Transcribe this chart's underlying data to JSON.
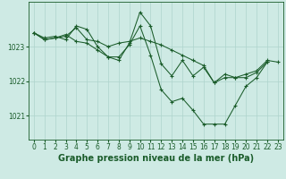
{
  "title": "Graphe pression niveau de la mer (hPa)",
  "xlabel_hours": [
    0,
    1,
    2,
    3,
    4,
    5,
    6,
    7,
    8,
    9,
    10,
    11,
    12,
    13,
    14,
    15,
    16,
    17,
    18,
    19,
    20,
    21,
    22,
    23
  ],
  "ylim": [
    1020.3,
    1024.3
  ],
  "yticks": [
    1021,
    1022,
    1023
  ],
  "background_color": "#ceeae4",
  "grid_color": "#aed4cc",
  "line_color": "#1a5c2a",
  "series1_x": [
    0,
    1,
    2,
    3,
    4,
    5,
    6,
    7,
    8,
    9,
    10,
    11,
    12,
    13,
    14,
    15,
    16,
    17,
    18,
    19,
    20,
    21,
    22,
    23
  ],
  "series1_y": [
    1023.4,
    1023.2,
    1023.25,
    1023.3,
    1023.55,
    1023.2,
    1023.15,
    1023.0,
    1023.1,
    1023.15,
    1023.25,
    1023.15,
    1023.05,
    1022.9,
    1022.75,
    1022.6,
    1022.45,
    1021.95,
    1022.1,
    1022.1,
    1022.2,
    1022.3,
    1022.6,
    1022.55
  ],
  "series2_x": [
    0,
    1,
    2,
    3,
    4,
    5,
    6,
    7,
    8,
    9,
    10,
    11,
    12,
    13,
    14,
    15,
    16,
    17,
    18,
    19,
    20,
    21,
    22
  ],
  "series2_y": [
    1023.4,
    1023.25,
    1023.3,
    1023.2,
    1023.6,
    1023.5,
    1023.0,
    1022.7,
    1022.6,
    1023.1,
    1024.0,
    1023.6,
    1022.5,
    1022.15,
    1022.6,
    1022.15,
    1022.4,
    1021.95,
    1022.2,
    1022.1,
    1022.1,
    1022.25,
    1022.55
  ],
  "series3_x": [
    0,
    1,
    2,
    3,
    4,
    5,
    6,
    7,
    8,
    9,
    10,
    11,
    12,
    13,
    14,
    15,
    16,
    17,
    18,
    19,
    20,
    21,
    22
  ],
  "series3_y": [
    1023.4,
    1023.2,
    1023.25,
    1023.35,
    1023.15,
    1023.1,
    1022.9,
    1022.7,
    1022.7,
    1023.05,
    1023.6,
    1022.75,
    1021.75,
    1021.4,
    1021.5,
    1021.15,
    1020.75,
    1020.75,
    1020.75,
    1021.3,
    1021.85,
    1022.1,
    1022.55
  ],
  "title_fontsize": 7,
  "tick_fontsize": 5.5,
  "marker_size": 3.0,
  "linewidth": 0.75
}
